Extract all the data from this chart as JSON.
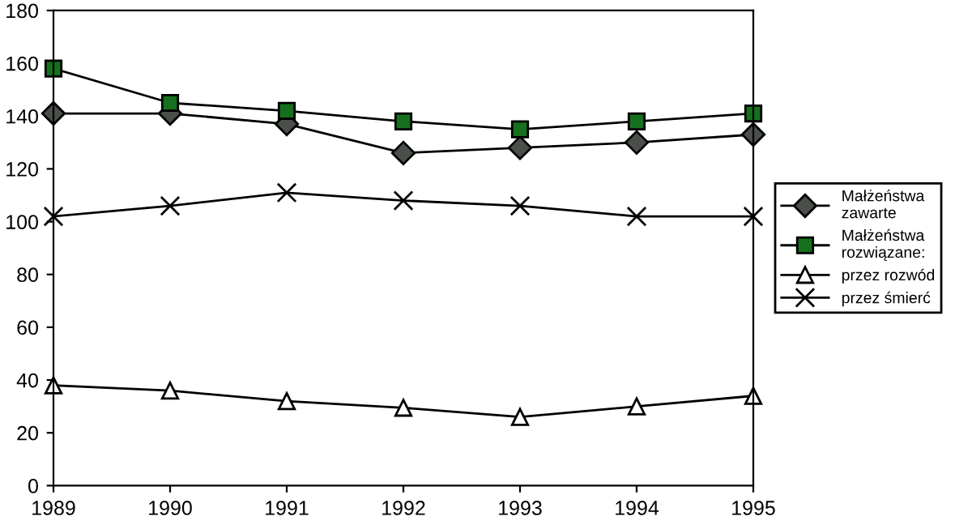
{
  "chart_data": {
    "type": "line",
    "categories": [
      "1989",
      "1990",
      "1991",
      "1992",
      "1993",
      "1994",
      "1995"
    ],
    "ylim": [
      0,
      180
    ],
    "yticks": [
      0,
      20,
      40,
      60,
      80,
      100,
      120,
      140,
      160,
      180
    ],
    "grid": false,
    "legend": "right",
    "series": [
      {
        "name": "Małżeństwa\nzawarte",
        "color": "#4a4f4a",
        "marker": "diamond",
        "values": [
          141,
          141,
          137,
          126,
          128,
          130,
          133
        ]
      },
      {
        "name": "Małżeństwa\nrozwiązane:",
        "color": "#16701e",
        "marker": "square",
        "values": [
          158,
          145,
          142,
          138,
          135,
          138,
          141
        ]
      },
      {
        "name": "przez rozwód",
        "color": "#ffffff",
        "marker": "triangle",
        "values": [
          38,
          36,
          32,
          29.5,
          26,
          30,
          34
        ]
      },
      {
        "name": "przez śmierć",
        "color": "#000000",
        "marker": "cross",
        "values": [
          102,
          106,
          111,
          108,
          106,
          102,
          102
        ]
      }
    ]
  }
}
